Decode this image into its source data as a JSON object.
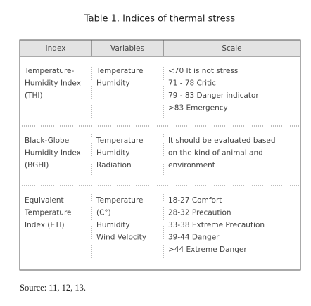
{
  "title": "Table 1. Indices of thermal stress",
  "table": {
    "headers": [
      "Index",
      "Variables",
      "Scale"
    ],
    "rows": [
      [
        [
          "Temperature-",
          "Humidity Index",
          "(THI)"
        ],
        [
          "Temperature",
          "Humidity"
        ],
        [
          "<70 It is not stress",
          "71 - 78 Critic",
          "79 - 83 Danger indicator",
          ">83 Emergency"
        ]
      ],
      [
        [
          "Black-Globe",
          "Humidity Index",
          "(BGHI)"
        ],
        [
          "Temperature",
          "Humidity",
          "Radiation"
        ],
        [
          "It should be evaluated based",
          "on the kind of animal and",
          "environment"
        ]
      ],
      [
        [
          "Equivalent",
          "Temperature",
          "Index (ETI)"
        ],
        [
          "Temperature",
          "(C°)",
          "Humidity",
          "Wind Velocity"
        ],
        [
          "18-27 Comfort",
          "28-32 Precaution",
          "33-38 Extreme Precaution",
          "39-44 Danger",
          ">44 Extreme Danger"
        ]
      ]
    ]
  },
  "source": "Source: 11, 12, 13."
}
